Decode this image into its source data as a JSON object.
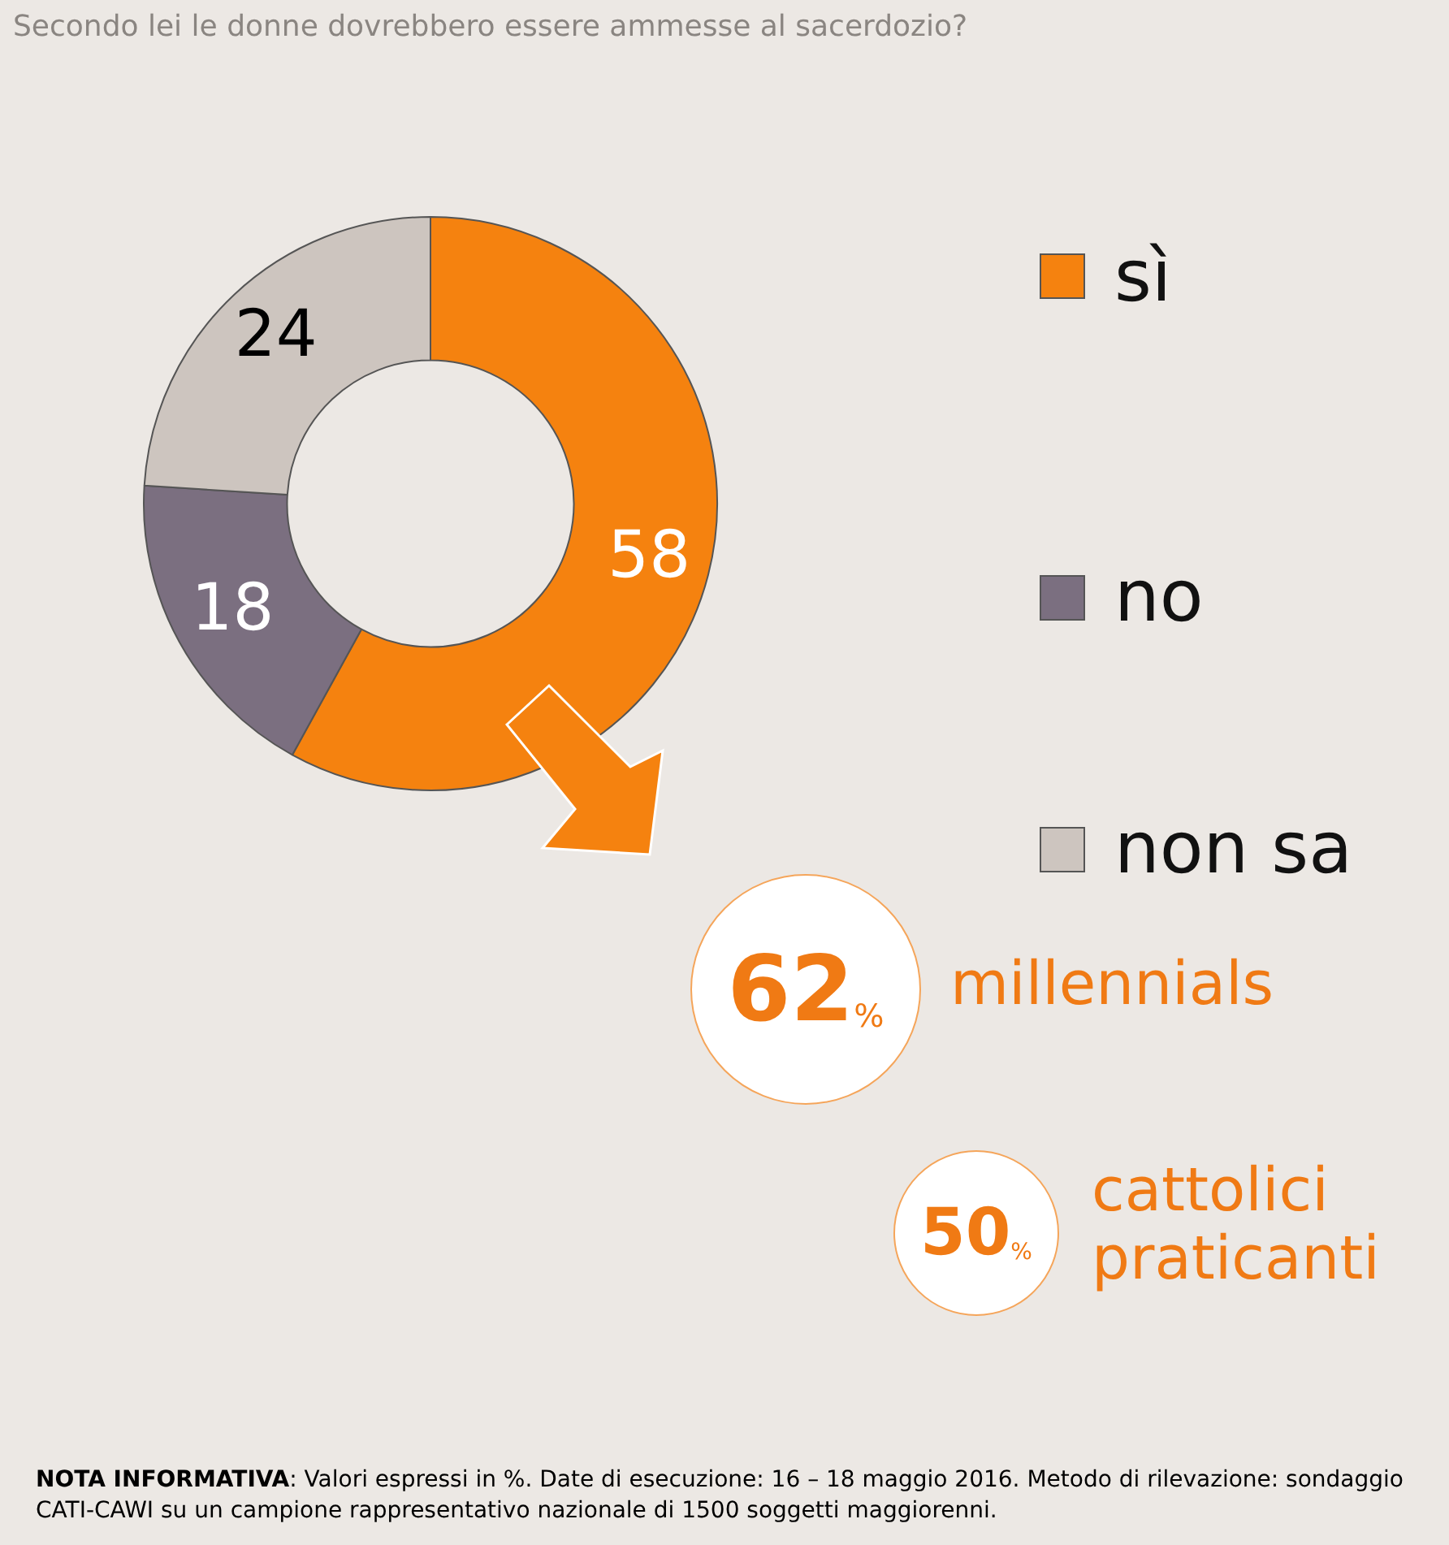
{
  "chart_data": {
    "type": "donut",
    "title": "Secondo lei le donne dovrebbero essere ammesse al sacerdozio?",
    "categories": [
      "sì",
      "no",
      "non sa"
    ],
    "values": [
      58,
      18,
      24
    ],
    "colors": [
      "#f5820f",
      "#7b6f80",
      "#cdc5bf"
    ],
    "data_labels": true,
    "legend": "right",
    "annotations": [
      "62%",
      "millennials",
      "50%",
      "cattolici praticanti",
      "NOTA INFORMATIVA: Valori espressi in %. Date di esecuzione: 16 – 18 maggio 2016. Metodo di rilevazione: sondaggio CATI-CAWI su un campione rappresentativo nazionale di 1500 soggetti maggiorenni."
    ]
  }
}
